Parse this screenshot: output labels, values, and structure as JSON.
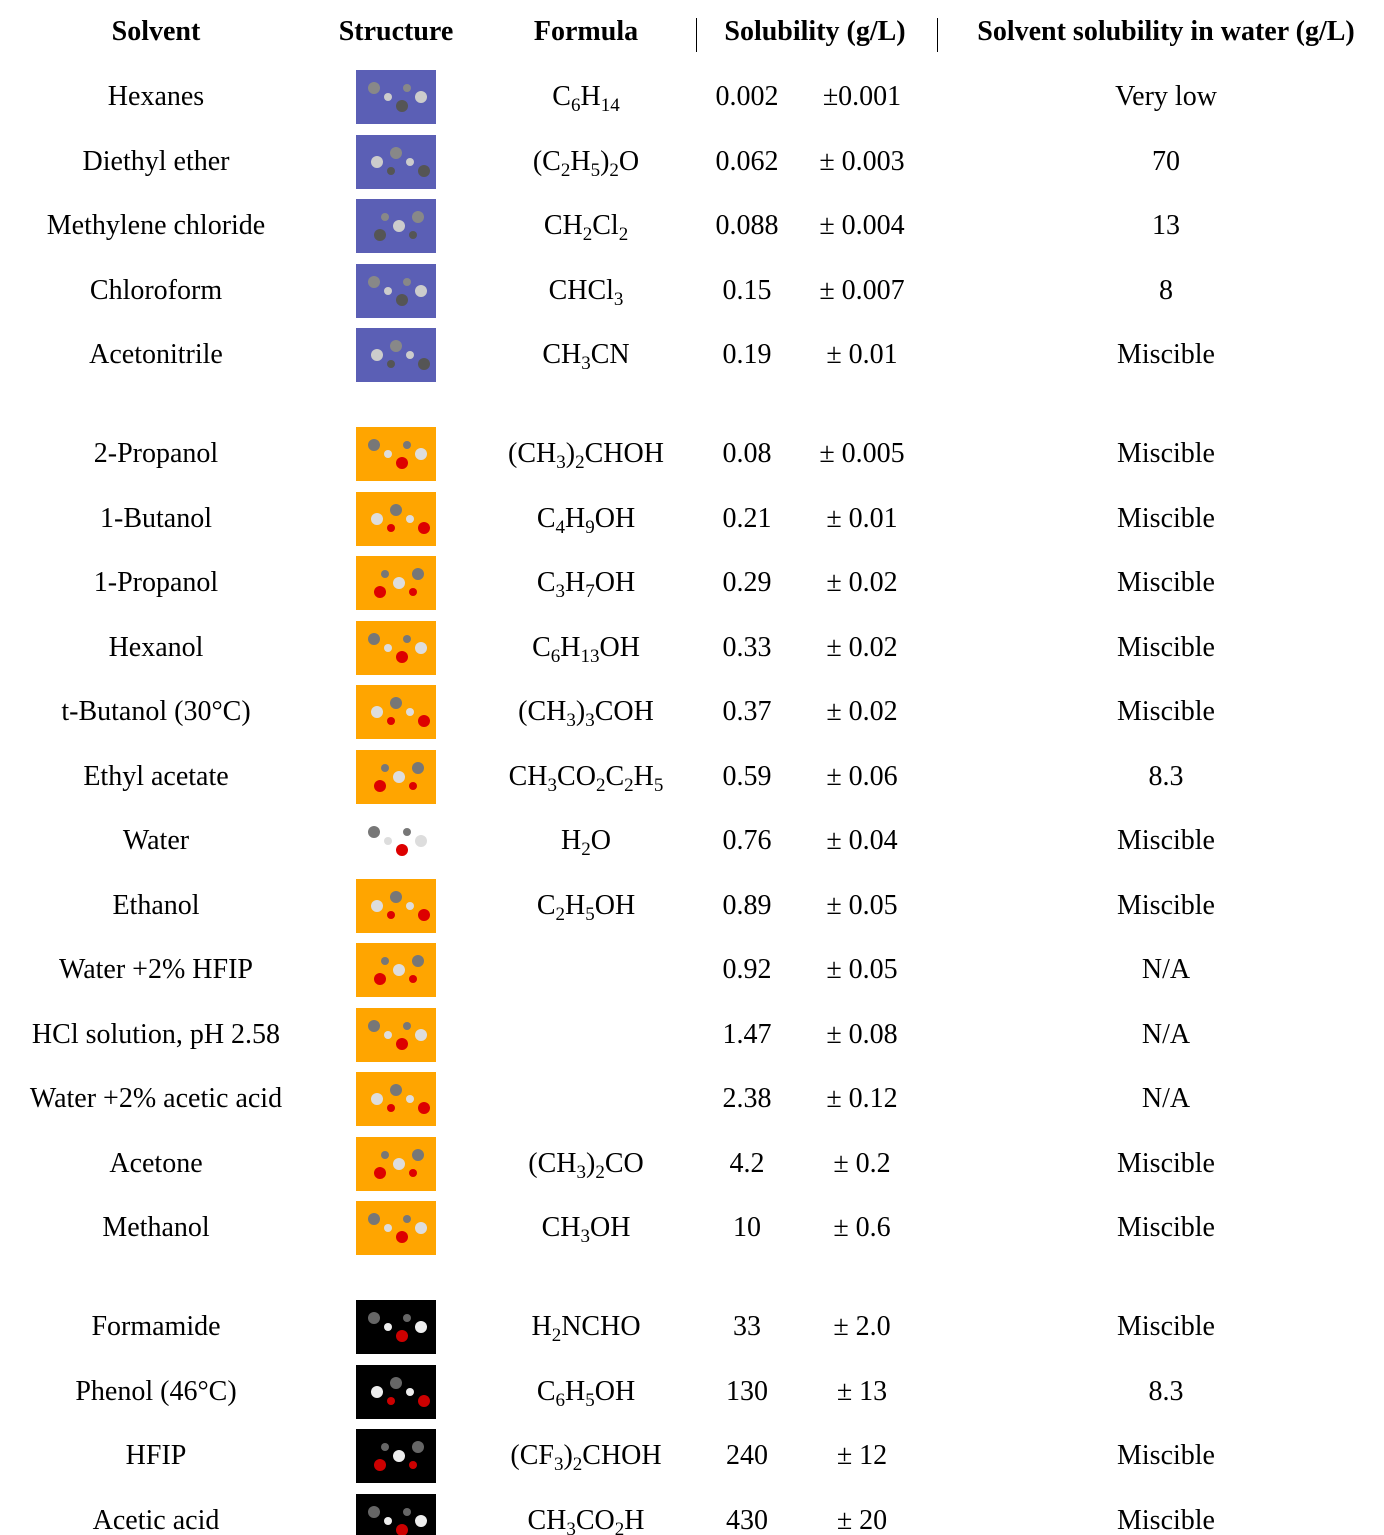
{
  "header": [
    "Solvent",
    "Structure",
    "Formula",
    "Solubility (g/L)",
    "Solvent solubility in water (g/L)"
  ],
  "groups": [
    {
      "rows": [
        {
          "solvent": "Hexanes",
          "formula": "C6H14",
          "solubility": "0.002",
          "error": "±0.001",
          "water": "Very low"
        },
        {
          "solvent": "Diethyl ether",
          "formula": "(C2H5)2O",
          "solubility": "0.062",
          "error": "± 0.003",
          "water": "70"
        },
        {
          "solvent": "Methylene chloride",
          "formula": "CH2Cl2",
          "solubility": "0.088",
          "error": "± 0.004",
          "water": "13"
        },
        {
          "solvent": "Chloroform",
          "formula": "CHCl3",
          "solubility": "0.15",
          "error": "± 0.007",
          "water": "8"
        },
        {
          "solvent": "Acetonitrile",
          "formula": "CH3CN",
          "solubility": "0.19",
          "error": "± 0.01",
          "water": "Miscible"
        }
      ]
    },
    {
      "rows": [
        {
          "solvent": "2-Propanol",
          "formula": "(CH3)2CHOH",
          "solubility": "0.08",
          "error": "± 0.005",
          "water": "Miscible"
        },
        {
          "solvent": "1-Butanol",
          "formula": "C4H9OH",
          "solubility": "0.21",
          "error": "± 0.01",
          "water": "Miscible"
        },
        {
          "solvent": "1-Propanol",
          "formula": "C3H7OH",
          "solubility": "0.29",
          "error": "± 0.02",
          "water": "Miscible"
        },
        {
          "solvent": "Hexanol",
          "formula": "C6H13OH",
          "solubility": "0.33",
          "error": "± 0.02",
          "water": "Miscible"
        },
        {
          "solvent": "t-Butanol (30°C)",
          "formula": "(CH3)3COH",
          "solubility": "0.37",
          "error": "± 0.02",
          "water": "Miscible"
        },
        {
          "solvent": "Ethyl acetate",
          "formula": "CH3CO2C2H5",
          "solubility": "0.59",
          "error": "± 0.06",
          "water": "8.3"
        },
        {
          "solvent": "Water",
          "formula": "H2O",
          "solubility": "0.76",
          "error": "± 0.04",
          "water": "Miscible"
        },
        {
          "solvent": "Ethanol",
          "formula": "C2H5OH",
          "solubility": "0.89",
          "error": "± 0.05",
          "water": "Miscible"
        },
        {
          "solvent": "Water +2% HFIP",
          "solubility": "0.92",
          "error": "± 0.05",
          "water": "N/A"
        },
        {
          "solvent": "HCl solution, pH 2.58",
          "solubility": "1.47",
          "error": "± 0.08",
          "water": "N/A"
        },
        {
          "solvent": "Water +2% acetic acid",
          "solubility": "2.38",
          "error": "± 0.12",
          "water": "N/A"
        },
        {
          "solvent": "Acetone",
          "formula": "(CH3)2CO",
          "solubility": "4.2",
          "error": "± 0.2",
          "water": "Miscible"
        },
        {
          "solvent": "Methanol",
          "formula": "CH3OH",
          "solubility": "10",
          "error": "± 0.6",
          "water": "Miscible"
        }
      ]
    },
    {
      "rows": [
        {
          "solvent": "Formamide",
          "formula": "H2NCHO",
          "solubility": "33",
          "error": "± 2.0",
          "water": "Miscible"
        },
        {
          "solvent": "Phenol (46°C)",
          "formula": "C6H5OH",
          "solubility": "130",
          "error": "± 13",
          "water": "8.3"
        },
        {
          "solvent": "HFIP",
          "formula": "(CF3)2CHOH",
          "solubility": "240",
          "error": "± 12",
          "water": "Miscible"
        },
        {
          "solvent": "Acetic acid",
          "formula": "CH3CO2H",
          "solubility": "430",
          "error": "± 20",
          "water": "Miscible"
        }
      ]
    }
  ]
}
